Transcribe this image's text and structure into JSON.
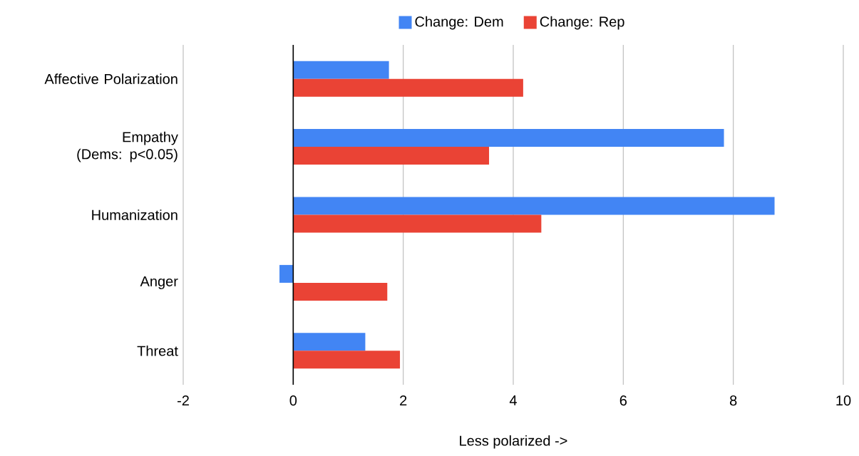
{
  "chart_data": {
    "type": "bar",
    "orientation": "horizontal",
    "xlabel": "Less polarized ->",
    "categories": [
      "Affective Polarization",
      "Empathy (Dems: p<0.05)",
      "Humanization",
      "Anger",
      "Threat"
    ],
    "series": [
      {
        "name": "Change: Dem",
        "color": "#4285f4",
        "values": [
          1.74,
          7.83,
          8.75,
          -0.25,
          1.31
        ]
      },
      {
        "name": "Change: Rep",
        "color": "#ea4335",
        "values": [
          4.18,
          3.56,
          4.51,
          1.71,
          1.94
        ]
      }
    ],
    "xlim": [
      -2,
      10
    ],
    "xticks": [
      -2,
      0,
      2,
      4,
      6,
      8,
      10
    ],
    "grid": "x",
    "legend": "top"
  }
}
